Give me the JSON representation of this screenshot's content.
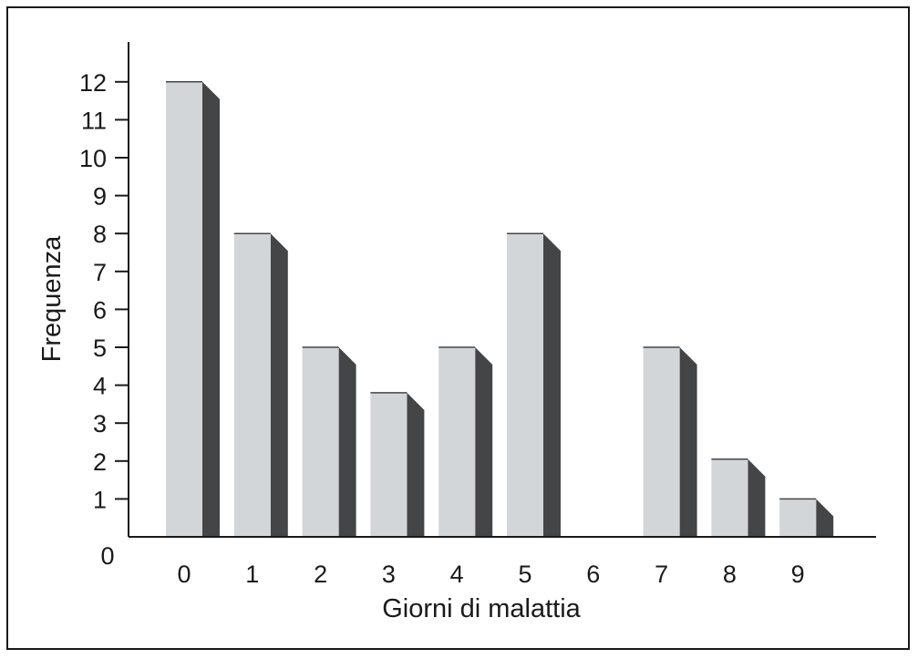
{
  "chart_data": {
    "type": "bar",
    "title": "",
    "xlabel": "Giorni di malattia",
    "ylabel": "Frequenza",
    "categories": [
      "0",
      "1",
      "2",
      "3",
      "4",
      "5",
      "6",
      "7",
      "8",
      "9"
    ],
    "values": [
      12,
      8,
      5,
      3.8,
      5,
      8,
      0,
      5,
      2.05,
      1
    ],
    "y_ticks": [
      "1",
      "2",
      "3",
      "4",
      "5",
      "6",
      "7",
      "8",
      "9",
      "10",
      "11",
      "12"
    ],
    "origin_label": "0",
    "ylim": [
      0,
      13
    ],
    "grid": false,
    "legend": "none",
    "colors": {
      "bar_face": "#d3d6d9",
      "bar_side": "#444547",
      "axis": "#1a1a1a"
    }
  }
}
